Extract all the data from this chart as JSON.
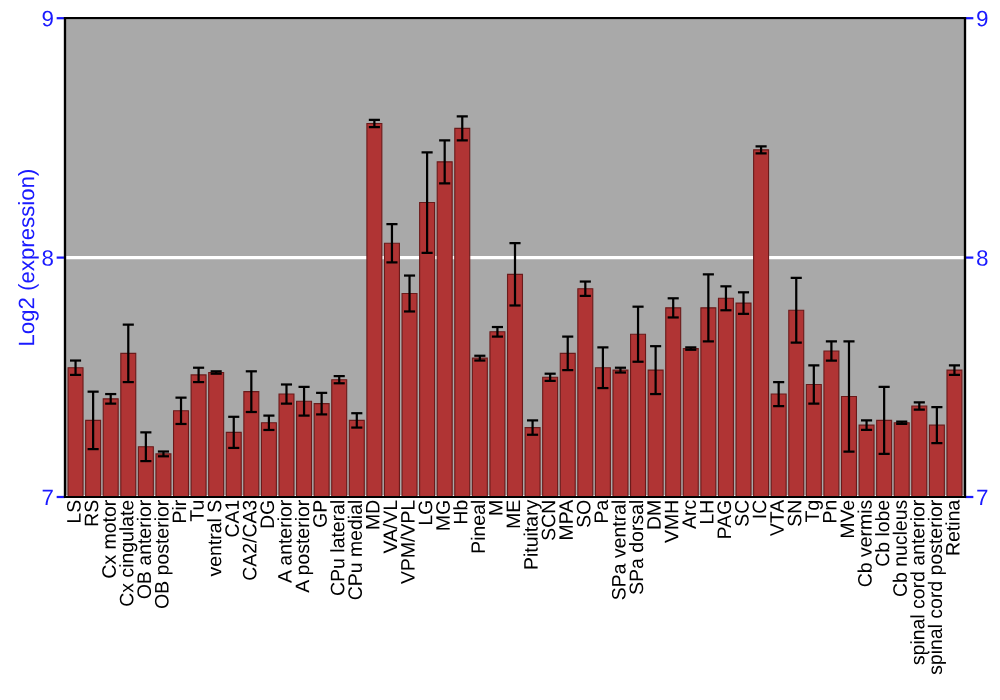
{
  "chart_data": {
    "type": "bar",
    "ylabel": "Log2 (expression)",
    "categories": [
      "LS",
      "RS",
      "Cx motor",
      "Cx cingulate",
      "OB anterior",
      "OB posterior",
      "Pir",
      "Tu",
      "ventral S",
      "CA1",
      "CA2/CA3",
      "DG",
      "A anterior",
      "A posterior",
      "GP",
      "CPu lateral",
      "CPu medial",
      "MD",
      "VA/VL",
      "VPM/VPL",
      "LG",
      "MG",
      "Hb",
      "Pineal",
      "M",
      "ME",
      "Pituitary",
      "SCN",
      "MPA",
      "SO",
      "Pa",
      "SPa ventral",
      "SPa dorsal",
      "DM",
      "VMH",
      "Arc",
      "LH",
      "PAG",
      "SC",
      "IC",
      "VTA",
      "SN",
      "Tg",
      "Pn",
      "MVe",
      "Cb vermis",
      "Cb lobe",
      "Cb nucleus",
      "spinal cord anterior",
      "spinal cord posterior",
      "Retina"
    ],
    "values": [
      7.54,
      7.32,
      7.41,
      7.6,
      7.21,
      7.18,
      7.36,
      7.51,
      7.52,
      7.27,
      7.44,
      7.31,
      7.43,
      7.4,
      7.39,
      7.49,
      7.32,
      8.56,
      8.06,
      7.85,
      8.23,
      8.4,
      8.54,
      7.58,
      7.69,
      7.93,
      7.29,
      7.5,
      7.6,
      7.87,
      7.54,
      7.53,
      7.68,
      7.53,
      7.79,
      7.62,
      7.79,
      7.83,
      7.81,
      8.45,
      7.43,
      7.78,
      7.47,
      7.61,
      7.42,
      7.3,
      7.32,
      7.31,
      7.38,
      7.3,
      7.53
    ],
    "errors": [
      0.03,
      0.12,
      0.02,
      0.12,
      0.06,
      0.01,
      0.055,
      0.03,
      0.005,
      0.065,
      0.085,
      0.03,
      0.04,
      0.06,
      0.045,
      0.015,
      0.03,
      0.015,
      0.08,
      0.075,
      0.21,
      0.09,
      0.05,
      0.01,
      0.02,
      0.13,
      0.03,
      0.015,
      0.07,
      0.03,
      0.085,
      0.01,
      0.115,
      0.1,
      0.04,
      0.005,
      0.14,
      0.05,
      0.045,
      0.015,
      0.05,
      0.135,
      0.08,
      0.04,
      0.23,
      0.02,
      0.14,
      0.005,
      0.015,
      0.075,
      0.02
    ],
    "color": "#b03434",
    "ylim": [
      7,
      9
    ],
    "yticks": [
      7,
      8,
      9
    ],
    "y2lim": [
      7,
      9
    ],
    "y2ticks": [
      7,
      8,
      9
    ],
    "grid": "y"
  }
}
